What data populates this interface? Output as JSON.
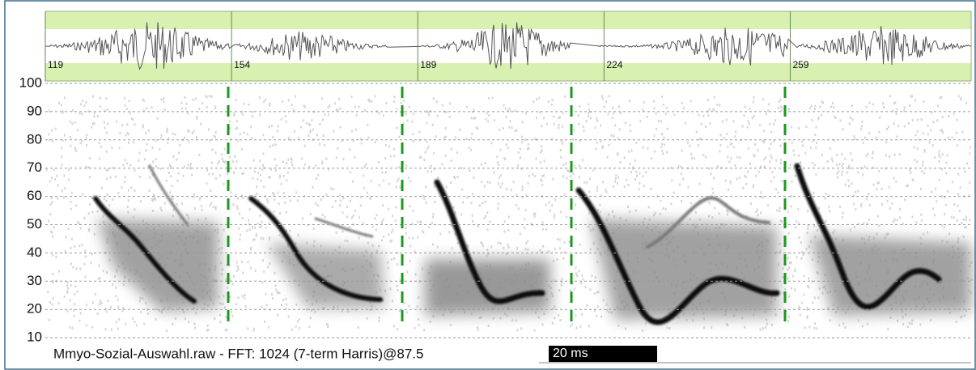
{
  "chart_data": {
    "type": "spectrogram",
    "ylim": [
      0,
      100
    ],
    "yticks": [
      10,
      20,
      30,
      40,
      50,
      60,
      70,
      80,
      90,
      100
    ],
    "grid": true,
    "waveform": {
      "xlim": [
        119,
        293
      ],
      "xticks": [
        119,
        154,
        189,
        224,
        259
      ]
    },
    "footer": "Mmyo-Sozial-Auswahl.raw - FFT: 1024 (7-term Harris)@87.5",
    "scale_bar": "20 ms"
  }
}
